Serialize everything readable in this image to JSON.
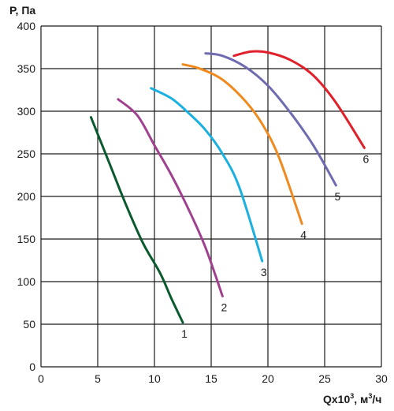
{
  "chart_data": {
    "type": "line",
    "ylabel": "P, Па",
    "xlabel_prefix": "Qx10",
    "xlabel_sup": "3",
    "xlabel_suffix": ", м",
    "xlabel_unit_sup": "3",
    "xlabel_tail": "/ч",
    "xlim": [
      0,
      30
    ],
    "ylim": [
      0,
      400
    ],
    "grid": true,
    "x_ticks": [
      "0",
      "5",
      "10",
      "15",
      "20",
      "25",
      "30"
    ],
    "y_ticks": [
      "0",
      "50",
      "100",
      "150",
      "200",
      "250",
      "300",
      "350",
      "400"
    ],
    "series": [
      {
        "name": "1",
        "color": "#0b5a2e",
        "x": [
          4.4,
          6.0,
          7.5,
          9.0,
          10.5,
          11.5,
          12.5
        ],
        "y": [
          293,
          240,
          190,
          145,
          110,
          80,
          52
        ]
      },
      {
        "name": "2",
        "color": "#a0418f",
        "x": [
          6.8,
          8.5,
          10.0,
          11.5,
          13.0,
          14.5,
          16.0
        ],
        "y": [
          314,
          295,
          260,
          225,
          185,
          140,
          83
        ]
      },
      {
        "name": "3",
        "color": "#1ab0e0",
        "x": [
          9.7,
          11.5,
          13.0,
          14.5,
          16.0,
          17.5,
          19.5
        ],
        "y": [
          327,
          315,
          298,
          278,
          250,
          210,
          124
        ]
      },
      {
        "name": "4",
        "color": "#f08a1e",
        "x": [
          12.5,
          14.0,
          16.0,
          18.0,
          19.5,
          21.0,
          23.0
        ],
        "y": [
          355,
          350,
          337,
          312,
          285,
          245,
          168
        ]
      },
      {
        "name": "5",
        "color": "#6f6bb0",
        "x": [
          14.5,
          16.0,
          18.0,
          20.0,
          22.0,
          24.0,
          26.0
        ],
        "y": [
          368,
          365,
          352,
          330,
          298,
          260,
          213
        ]
      },
      {
        "name": "6",
        "color": "#e0202a",
        "x": [
          17.0,
          18.5,
          20.0,
          22.0,
          24.0,
          26.0,
          28.5
        ],
        "y": [
          365,
          370,
          369,
          360,
          342,
          310,
          257
        ]
      }
    ]
  }
}
